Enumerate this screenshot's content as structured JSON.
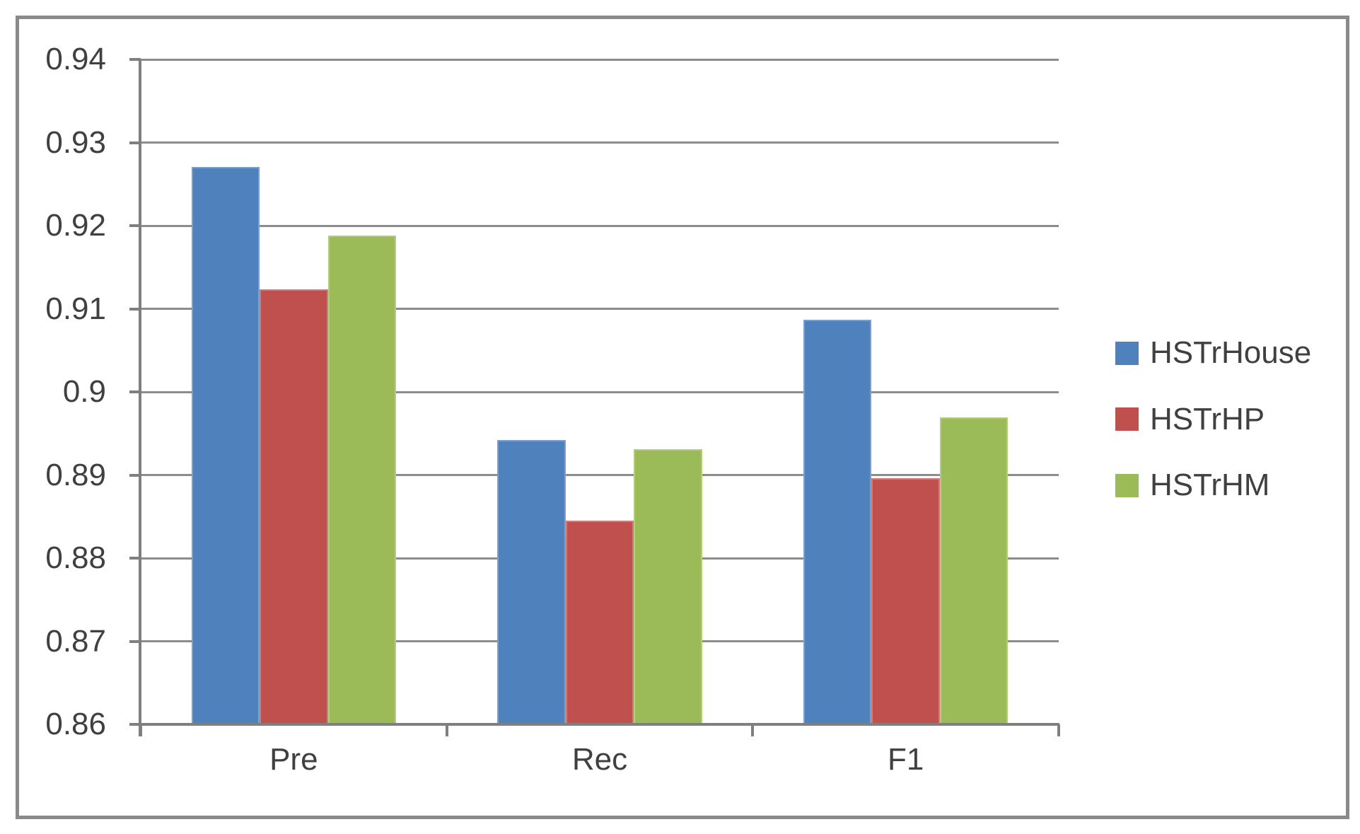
{
  "chart_data": {
    "type": "bar",
    "categories": [
      "Pre",
      "Rec",
      "F1"
    ],
    "series": [
      {
        "name": "HSTrHouse",
        "color": "#4F81BD",
        "values": [
          0.9271,
          0.8942,
          0.9087
        ]
      },
      {
        "name": "HSTrHP",
        "color": "#C0504D",
        "values": [
          0.9123,
          0.8845,
          0.8896
        ]
      },
      {
        "name": "HSTrHM",
        "color": "#9BBB59",
        "values": [
          0.9188,
          0.8931,
          0.8969
        ]
      }
    ],
    "ylim": [
      0.86,
      0.94
    ],
    "yticks": [
      0.86,
      0.87,
      0.88,
      0.89,
      0.9,
      0.91,
      0.92,
      0.93,
      0.94
    ],
    "ytick_labels": [
      "0.86",
      "0.87",
      "0.88",
      "0.89",
      "0.9",
      "0.91",
      "0.92",
      "0.93",
      "0.94"
    ],
    "grid": true,
    "legend_position": "right",
    "colors": {
      "axis": "#7f7f7f",
      "gridline": "#8c8c8c",
      "text": "#404040",
      "frame": "#8a8a8a",
      "background": "#ffffff"
    }
  }
}
